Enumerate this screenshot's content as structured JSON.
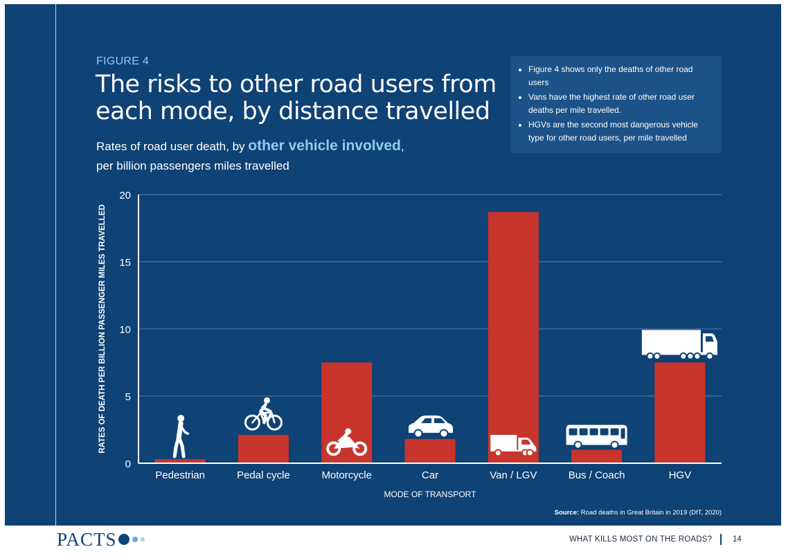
{
  "figure_label": "FIGURE 4",
  "title": "The risks to other road users from each mode, by distance travelled",
  "subtitle": {
    "part1": "Rates of road user death, by ",
    "highlight": "other vehicle involved",
    "part2": ",",
    "line2": "per billion passengers miles travelled"
  },
  "notes": [
    "Figure 4 shows only the deaths of other road users",
    "Vans have the highest rate of other road user deaths per mile travelled.",
    "HGVs are the second most dangerous vehicle type for other road users, per mile travelled"
  ],
  "chart_data": {
    "type": "bar",
    "title": "",
    "xlabel": "MODE OF TRANSPORT",
    "ylabel": "RATES OF DEATH PER BILLION PASSENGER MILES TRAVELLED",
    "categories": [
      "Pedestrian",
      "Pedal cycle",
      "Motorcycle",
      "Car",
      "Van / LGV",
      "Bus / Coach",
      "HGV"
    ],
    "icons": [
      "pedestrian-icon",
      "bicycle-icon",
      "motorcycle-icon",
      "car-icon",
      "van-icon",
      "bus-icon",
      "truck-icon"
    ],
    "values": [
      0.3,
      2.1,
      7.5,
      1.8,
      18.7,
      1.0,
      7.5
    ],
    "ylim": [
      0,
      20
    ],
    "yticks": [
      0,
      5,
      10,
      15,
      20
    ],
    "grid": true,
    "legend": "none"
  },
  "colors": {
    "background": "#0f4275",
    "bar": "#c8352c",
    "accent": "#8ecdf0",
    "grid": "#5a80a8"
  },
  "source": {
    "label": "Source:",
    "text": " Road deaths in Great Britain in 2019 (DfT, 2020)"
  },
  "footer": {
    "logo": "PACTS",
    "section": "WHAT KILLS MOST ON THE ROADS?",
    "page": "14"
  }
}
